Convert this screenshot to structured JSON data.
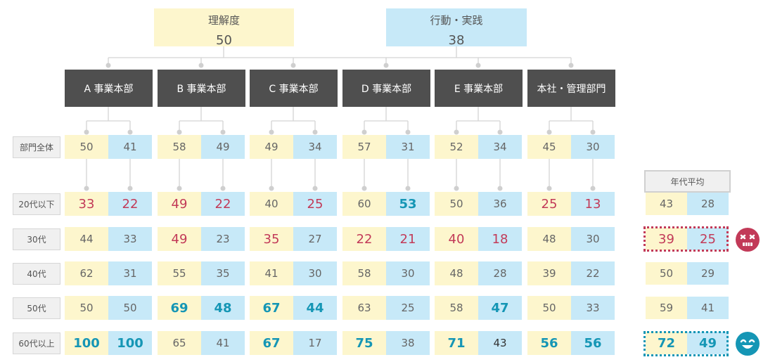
{
  "top_nodes": [
    {
      "label": "理解度",
      "value": "50"
    },
    {
      "label": "行動・実践",
      "value": "38"
    }
  ],
  "departments": [
    "A 事業本部",
    "B 事業本部",
    "C 事業本部",
    "D 事業本部",
    "E 事業本部",
    "本社・管理部門"
  ],
  "rows": [
    {
      "label": "部門全体",
      "values": [
        "50",
        "41",
        "58",
        "49",
        "49",
        "34",
        "57",
        "31",
        "52",
        "34",
        "45",
        "30"
      ],
      "styles": [
        "n",
        "n",
        "n",
        "n",
        "n",
        "n",
        "n",
        "n",
        "n",
        "n",
        "n",
        "n"
      ]
    },
    {
      "label": "20代以下",
      "values": [
        "33",
        "22",
        "49",
        "22",
        "40",
        "25",
        "60",
        "53",
        "50",
        "36",
        "25",
        "13"
      ],
      "styles": [
        "r",
        "r",
        "r",
        "r",
        "n",
        "r",
        "n",
        "t",
        "n",
        "n",
        "r",
        "r"
      ]
    },
    {
      "label": "30代",
      "values": [
        "44",
        "33",
        "49",
        "23",
        "35",
        "27",
        "22",
        "21",
        "40",
        "18",
        "48",
        "30"
      ],
      "styles": [
        "n",
        "n",
        "r",
        "n",
        "r",
        "n",
        "r",
        "r",
        "r",
        "r",
        "n",
        "n"
      ]
    },
    {
      "label": "40代",
      "values": [
        "62",
        "31",
        "55",
        "35",
        "41",
        "30",
        "58",
        "30",
        "48",
        "28",
        "39",
        "22"
      ],
      "styles": [
        "n",
        "n",
        "n",
        "n",
        "n",
        "n",
        "n",
        "n",
        "n",
        "n",
        "n",
        "n"
      ]
    },
    {
      "label": "50代",
      "values": [
        "50",
        "50",
        "69",
        "48",
        "67",
        "44",
        "63",
        "25",
        "58",
        "47",
        "50",
        "33"
      ],
      "styles": [
        "n",
        "n",
        "t",
        "t",
        "t",
        "t",
        "n",
        "n",
        "n",
        "t",
        "n",
        "n"
      ]
    },
    {
      "label": "60代以上",
      "values": [
        "100",
        "100",
        "65",
        "41",
        "67",
        "17",
        "75",
        "38",
        "71",
        "43",
        "56",
        "56"
      ],
      "styles": [
        "t",
        "t",
        "n",
        "n",
        "t",
        "n",
        "t",
        "n",
        "t",
        "d",
        "t",
        "t"
      ]
    }
  ],
  "age_average": {
    "header": "年代平均",
    "rows": [
      {
        "values": [
          "43",
          "28"
        ],
        "styles": [
          "n",
          "n"
        ]
      },
      {
        "values": [
          "39",
          "25"
        ],
        "styles": [
          "r",
          "r"
        ]
      },
      {
        "values": [
          "50",
          "29"
        ],
        "styles": [
          "n",
          "n"
        ]
      },
      {
        "values": [
          "59",
          "41"
        ],
        "styles": [
          "n",
          "n"
        ]
      },
      {
        "values": [
          "72",
          "49"
        ],
        "styles": [
          "t",
          "t"
        ]
      }
    ]
  },
  "colors": {
    "understanding": "#fdf6cd",
    "action": "#c7e9f8",
    "low": "#c23a58",
    "high": "#1596b5",
    "dept": "#4f4f4f"
  },
  "icons": {
    "low_group": "sad-face-icon",
    "high_group": "smile-face-icon"
  }
}
